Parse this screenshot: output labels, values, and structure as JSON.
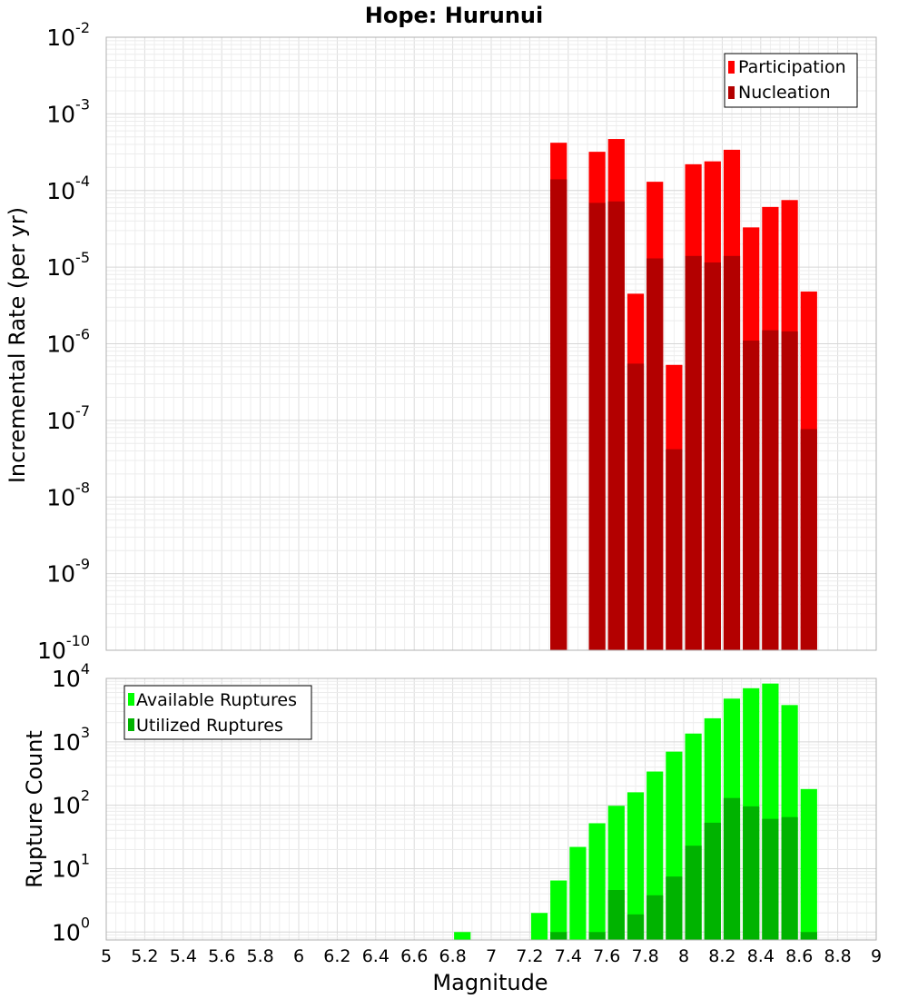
{
  "chart_data": [
    {
      "type": "bar",
      "title": "Hope: Hurunui",
      "ylabel": "Incremental Rate (per yr)",
      "xlabel": "",
      "yscale": "log",
      "ylim": [
        1e-10,
        0.01
      ],
      "xlim": [
        5,
        9
      ],
      "bin_width": 0.1,
      "grid": true,
      "legend_position": "top-right",
      "y_tick_labels": [
        {
          "base": "10",
          "exp": "-10"
        },
        {
          "base": "10",
          "exp": "-9"
        },
        {
          "base": "10",
          "exp": "-8"
        },
        {
          "base": "10",
          "exp": "-7"
        },
        {
          "base": "10",
          "exp": "-6"
        },
        {
          "base": "10",
          "exp": "-5"
        },
        {
          "base": "10",
          "exp": "-4"
        },
        {
          "base": "10",
          "exp": "-3"
        },
        {
          "base": "10",
          "exp": "-2"
        }
      ],
      "x": [
        7.35,
        7.55,
        7.65,
        7.75,
        7.85,
        7.95,
        8.05,
        8.15,
        8.25,
        8.35,
        8.45,
        8.55,
        8.65
      ],
      "series": [
        {
          "name": "Participation",
          "color": "#ff0000",
          "values": [
            0.00042,
            0.00032,
            0.00047,
            4.5e-06,
            0.00013,
            5.3e-07,
            0.00022,
            0.00024,
            0.00034,
            3.3e-05,
            6.1e-05,
            7.5e-05,
            4.8e-06
          ]
        },
        {
          "name": "Nucleation",
          "color": "#b30000",
          "values": [
            0.00014,
            6.9e-05,
            7.2e-05,
            5.5e-07,
            1.3e-05,
            4.2e-08,
            1.4e-05,
            1.15e-05,
            1.4e-05,
            1.1e-06,
            1.5e-06,
            1.45e-06,
            7.7e-08
          ]
        }
      ]
    },
    {
      "type": "bar",
      "title": "",
      "ylabel": "Rupture Count",
      "xlabel": "Magnitude",
      "yscale": "log",
      "ylim": [
        0.75,
        10000
      ],
      "xlim": [
        5,
        9
      ],
      "bin_width": 0.1,
      "grid": true,
      "legend_position": "top-left",
      "x_tick_labels": [
        "5",
        "5.2",
        "5.4",
        "5.6",
        "5.8",
        "6",
        "6.2",
        "6.4",
        "6.6",
        "6.8",
        "7",
        "7.2",
        "7.4",
        "7.6",
        "7.8",
        "8",
        "8.2",
        "8.4",
        "8.6",
        "8.8",
        "9"
      ],
      "y_tick_labels": [
        {
          "base": "10",
          "exp": "0"
        },
        {
          "base": "10",
          "exp": "1"
        },
        {
          "base": "10",
          "exp": "2"
        },
        {
          "base": "10",
          "exp": "3"
        },
        {
          "base": "10",
          "exp": "4"
        }
      ],
      "x": [
        6.85,
        7.25,
        7.35,
        7.45,
        7.55,
        7.65,
        7.75,
        7.85,
        7.95,
        8.05,
        8.15,
        8.25,
        8.35,
        8.45,
        8.55,
        8.65
      ],
      "series": [
        {
          "name": "Available Ruptures",
          "color": "#00ff00",
          "values": [
            1,
            2,
            6.5,
            22,
            52,
            98,
            160,
            340,
            700,
            1350,
            2350,
            4800,
            7000,
            8300,
            3800,
            180
          ]
        },
        {
          "name": "Utilized Ruptures",
          "color": "#00b300",
          "values": [
            null,
            null,
            1,
            null,
            1,
            4.6,
            1.9,
            3.8,
            7.5,
            23,
            53,
            130,
            96,
            61,
            65,
            1
          ]
        }
      ]
    }
  ]
}
